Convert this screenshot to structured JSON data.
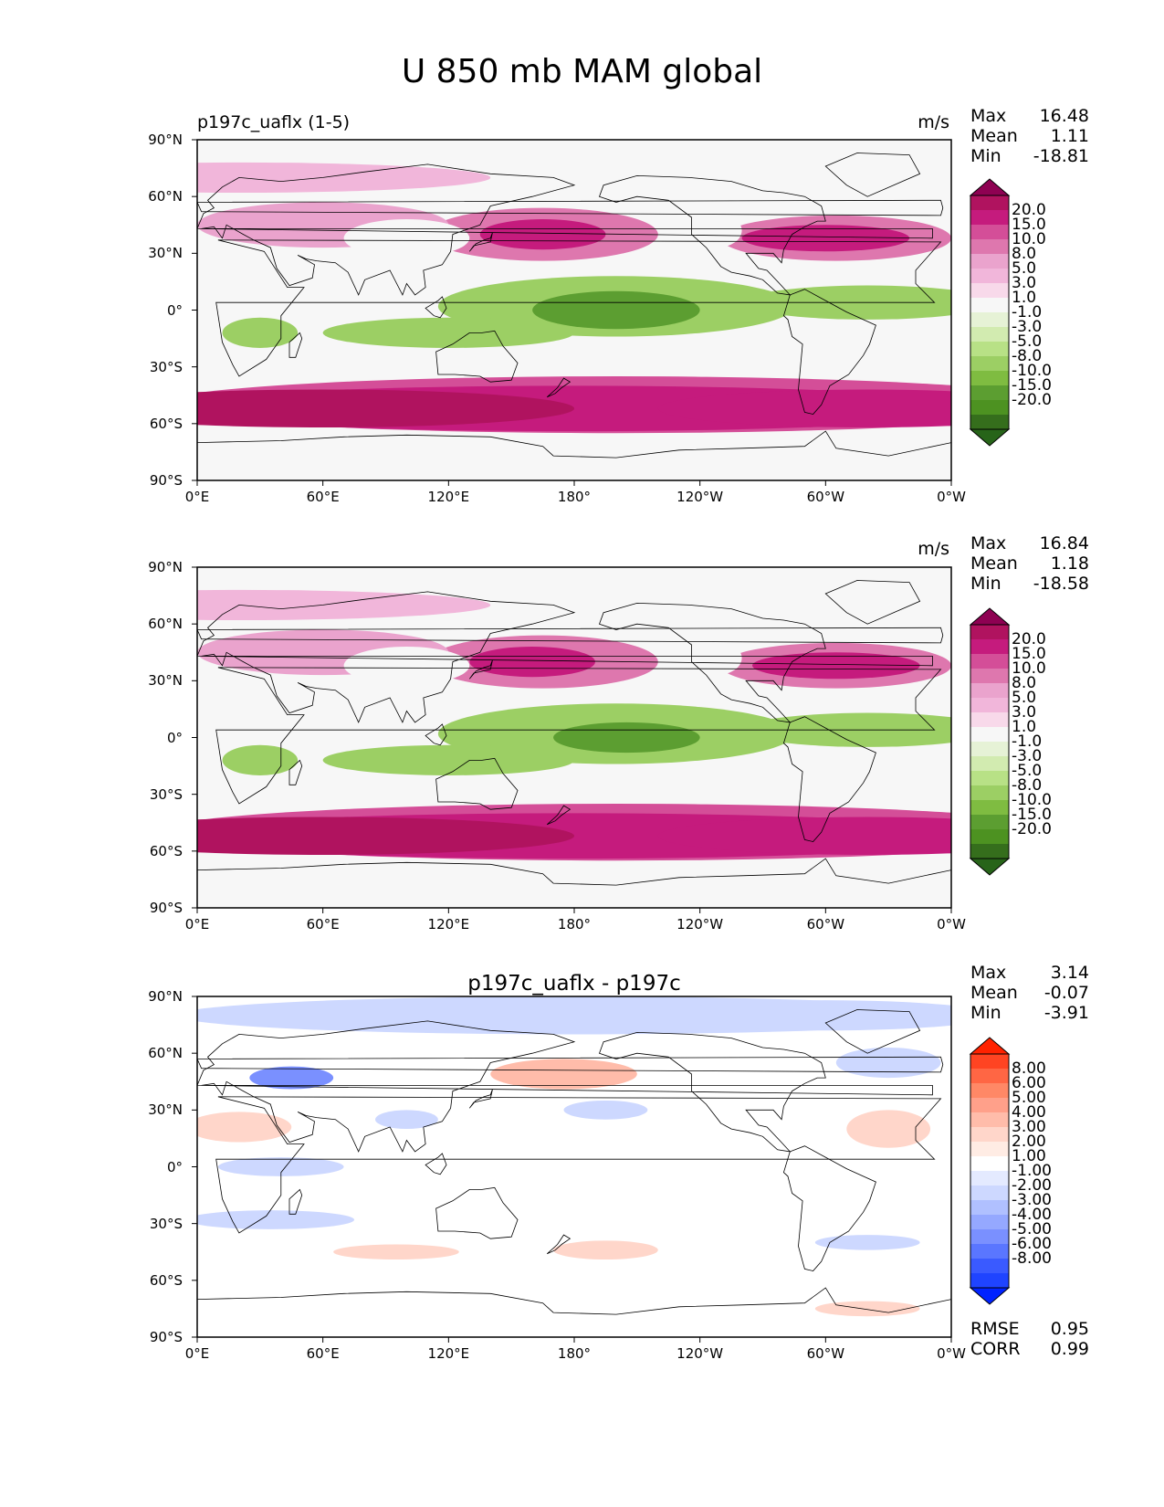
{
  "figure_title": "U 850 mb MAM global",
  "chart_data": [
    {
      "type": "heatmap",
      "title_left": "p197c_uaflx (1-5)",
      "units": "m/s",
      "stats": {
        "max_label": "Max",
        "max": "16.48",
        "mean_label": "Mean",
        "mean": "1.11",
        "min_label": "Min",
        "min": "-18.81"
      },
      "xlim": [
        0,
        360
      ],
      "ylim": [
        -90,
        90
      ],
      "x_ticks": [
        "0°E",
        "60°E",
        "120°E",
        "180°",
        "120°W",
        "60°W",
        "0°W"
      ],
      "y_ticks": [
        "90°N",
        "60°N",
        "30°N",
        "0°",
        "30°S",
        "60°S",
        "90°S"
      ],
      "colorbar": {
        "ticks": [
          "20.0",
          "15.0",
          "10.0",
          "8.0",
          "5.0",
          "3.0",
          "1.0",
          "-1.0",
          "-3.0",
          "-5.0",
          "-8.0",
          "-10.0",
          "-15.0",
          "-20.0"
        ],
        "colors": [
          "#8e0152",
          "#b0135f",
          "#c51b7d",
          "#d44e98",
          "#de77ae",
          "#eaa3cd",
          "#f1b6da",
          "#f8d9ea",
          "#f7f7f7",
          "#e6f2d6",
          "#d2ebb0",
          "#b8e186",
          "#9ccf64",
          "#7fbc41",
          "#5c9e31",
          "#4d9221",
          "#356e1c",
          "#276419"
        ]
      }
    },
    {
      "type": "heatmap",
      "units": "m/s",
      "stats": {
        "max_label": "Max",
        "max": "16.84",
        "mean_label": "Mean",
        "mean": "1.18",
        "min_label": "Min",
        "min": "-18.58"
      },
      "xlim": [
        0,
        360
      ],
      "ylim": [
        -90,
        90
      ],
      "x_ticks": [
        "0°E",
        "60°E",
        "120°E",
        "180°",
        "120°W",
        "60°W",
        "0°W"
      ],
      "y_ticks": [
        "90°N",
        "60°N",
        "30°N",
        "0°",
        "30°S",
        "60°S",
        "90°S"
      ],
      "colorbar": {
        "ticks": [
          "20.0",
          "15.0",
          "10.0",
          "8.0",
          "5.0",
          "3.0",
          "1.0",
          "-1.0",
          "-3.0",
          "-5.0",
          "-8.0",
          "-10.0",
          "-15.0",
          "-20.0"
        ],
        "colors": [
          "#8e0152",
          "#b0135f",
          "#c51b7d",
          "#d44e98",
          "#de77ae",
          "#eaa3cd",
          "#f1b6da",
          "#f8d9ea",
          "#f7f7f7",
          "#e6f2d6",
          "#d2ebb0",
          "#b8e186",
          "#9ccf64",
          "#7fbc41",
          "#5c9e31",
          "#4d9221",
          "#356e1c",
          "#276419"
        ]
      }
    },
    {
      "type": "heatmap",
      "title_center": "p197c_uaflx - p197c",
      "stats": {
        "max_label": "Max",
        "max": "3.14",
        "mean_label": "Mean",
        "mean": "-0.07",
        "min_label": "Min",
        "min": "-3.91"
      },
      "xlim": [
        0,
        360
      ],
      "ylim": [
        -90,
        90
      ],
      "x_ticks": [
        "0°E",
        "60°E",
        "120°E",
        "180°",
        "120°W",
        "60°W",
        "0°W"
      ],
      "y_ticks": [
        "90°N",
        "60°N",
        "30°N",
        "0°",
        "30°S",
        "60°S",
        "90°S"
      ],
      "colorbar": {
        "ticks": [
          "8.00",
          "6.00",
          "5.00",
          "4.00",
          "3.00",
          "2.00",
          "1.00",
          "-1.00",
          "-2.00",
          "-3.00",
          "-4.00",
          "-5.00",
          "-6.00",
          "-8.00"
        ],
        "colors": [
          "#ff2200",
          "#ff4422",
          "#ff6644",
          "#ff8866",
          "#ffa08a",
          "#ffbcaa",
          "#ffd6ca",
          "#ffecE4",
          "#ffffff",
          "#e4eaff",
          "#cdd8ff",
          "#b0c0ff",
          "#95a8ff",
          "#7a90ff",
          "#5a76ff",
          "#3a5aff",
          "#1f44ff",
          "#0022ff"
        ]
      },
      "rmse_label": "RMSE",
      "rmse": "0.95",
      "corr_label": "CORR",
      "corr": "0.99"
    }
  ]
}
